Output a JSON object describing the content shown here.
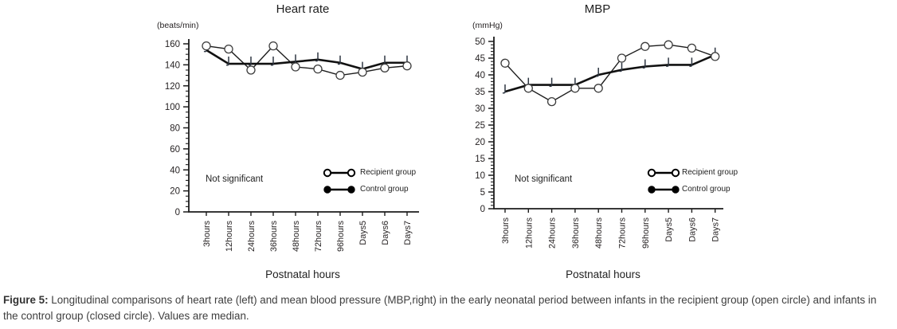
{
  "figure_caption": {
    "label": "Figure 5:",
    "text": "Longitudinal comparisons of heart rate (left) and mean blood pressure (MBP,right) in the early neonatal period between infants in the recipient group (open circle) and infants in the control group (closed circle). Values are median."
  },
  "colors": {
    "line": "#1c1c1c",
    "text": "#231f20",
    "control_tick": "#2e3642",
    "background": "#ffffff"
  },
  "chart_data": [
    {
      "type": "line",
      "title": "Heart rate",
      "y_unit_label": "(beats/min)",
      "xlabel": "Postnatal hours",
      "annotation": "Not significant",
      "legend_position": "inside-lower-right",
      "grid": false,
      "categories": [
        "3hours",
        "12hours",
        "24hours",
        "36hours",
        "48hours",
        "72hours",
        "96hours",
        "Days5",
        "Days6",
        "Days7"
      ],
      "ylim": [
        0,
        160
      ],
      "ytick_step": 20,
      "yminor_step": 5,
      "series": [
        {
          "name": "Recipient group",
          "marker": "open-circle",
          "values": [
            158,
            155,
            135,
            158,
            138,
            136,
            130,
            133,
            137,
            139
          ]
        },
        {
          "name": "Control group",
          "marker": "closed-circle",
          "values": [
            154,
            141,
            141,
            141,
            143,
            145,
            142,
            136,
            142,
            142
          ]
        }
      ]
    },
    {
      "type": "line",
      "title": "MBP",
      "y_unit_label": "(mmHg)",
      "xlabel": "Postnatal hours",
      "annotation": "Not significant",
      "legend_position": "inside-lower-right",
      "grid": false,
      "categories": [
        "3hours",
        "12hours",
        "24hours",
        "36hours",
        "48hours",
        "72hours",
        "96hours",
        "Days5",
        "Days6",
        "Days7"
      ],
      "ylim": [
        0,
        50
      ],
      "ytick_step": 5,
      "yminor_step": 1,
      "series": [
        {
          "name": "Recipient group",
          "marker": "open-circle",
          "values": [
            43.5,
            36,
            32,
            36,
            36,
            45,
            48.5,
            49,
            48,
            45.5
          ]
        },
        {
          "name": "Control group",
          "marker": "closed-circle",
          "values": [
            35,
            37,
            37,
            37,
            40,
            41.5,
            42.5,
            43,
            43,
            46
          ]
        }
      ]
    }
  ]
}
